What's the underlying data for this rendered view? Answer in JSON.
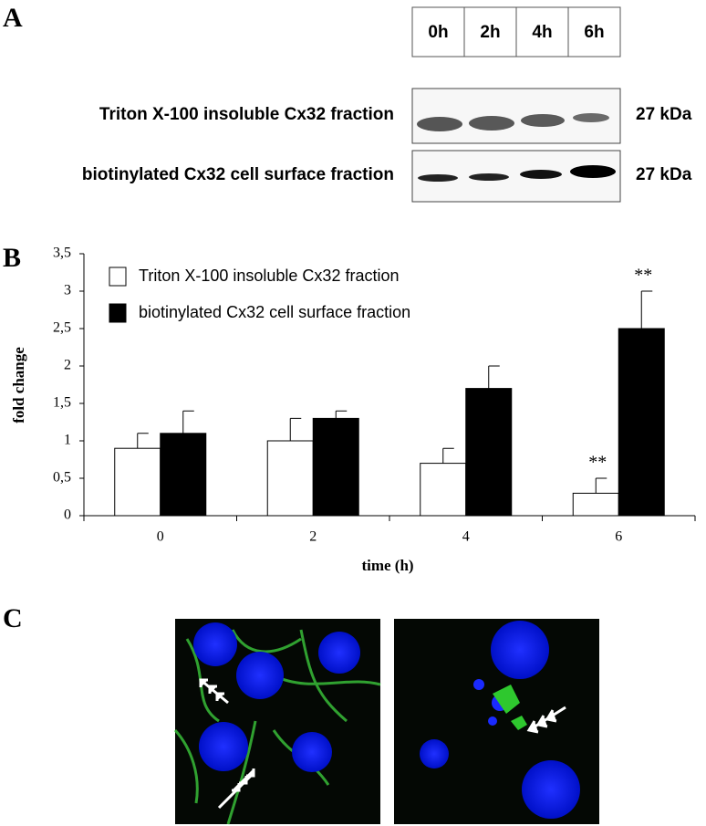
{
  "panel_a": {
    "label": "A",
    "lanes": [
      "0h",
      "2h",
      "4h",
      "6h"
    ],
    "rows": [
      {
        "label": "Triton X-100 insoluble Cx32 fraction",
        "size": "27 kDa"
      },
      {
        "label": "biotinylated Cx32 cell surface fraction",
        "size": "27 kDa"
      }
    ]
  },
  "chart_data": {
    "type": "bar",
    "panel_label": "B",
    "y_label": "fold change",
    "x_label": "time (h)",
    "categories": [
      "0",
      "2",
      "4",
      "6"
    ],
    "series": [
      {
        "name": "Triton X-100 insoluble Cx32 fraction",
        "color": "#ffffff",
        "values": [
          0.9,
          1.0,
          0.7,
          0.3
        ],
        "errors": [
          0.2,
          0.3,
          0.2,
          0.2
        ],
        "annotations": [
          null,
          null,
          null,
          "**"
        ]
      },
      {
        "name": "biotinylated Cx32 cell surface fraction",
        "color": "#000000",
        "values": [
          1.1,
          1.3,
          1.7,
          2.5
        ],
        "errors": [
          0.3,
          0.1,
          0.3,
          0.5
        ],
        "annotations": [
          null,
          null,
          null,
          "**"
        ]
      }
    ],
    "ylim": [
      0,
      3.5
    ],
    "yticks": [
      0,
      {
        "value": 0.5,
        "label": "0,5"
      },
      1,
      {
        "value": 1.5,
        "label": "1,5"
      },
      2,
      {
        "value": 2.5,
        "label": "2,5"
      },
      3,
      {
        "value": 3.5,
        "label": "3,5"
      }
    ],
    "grid": false,
    "legend": "top-left"
  },
  "panel_c": {
    "label": "C"
  }
}
